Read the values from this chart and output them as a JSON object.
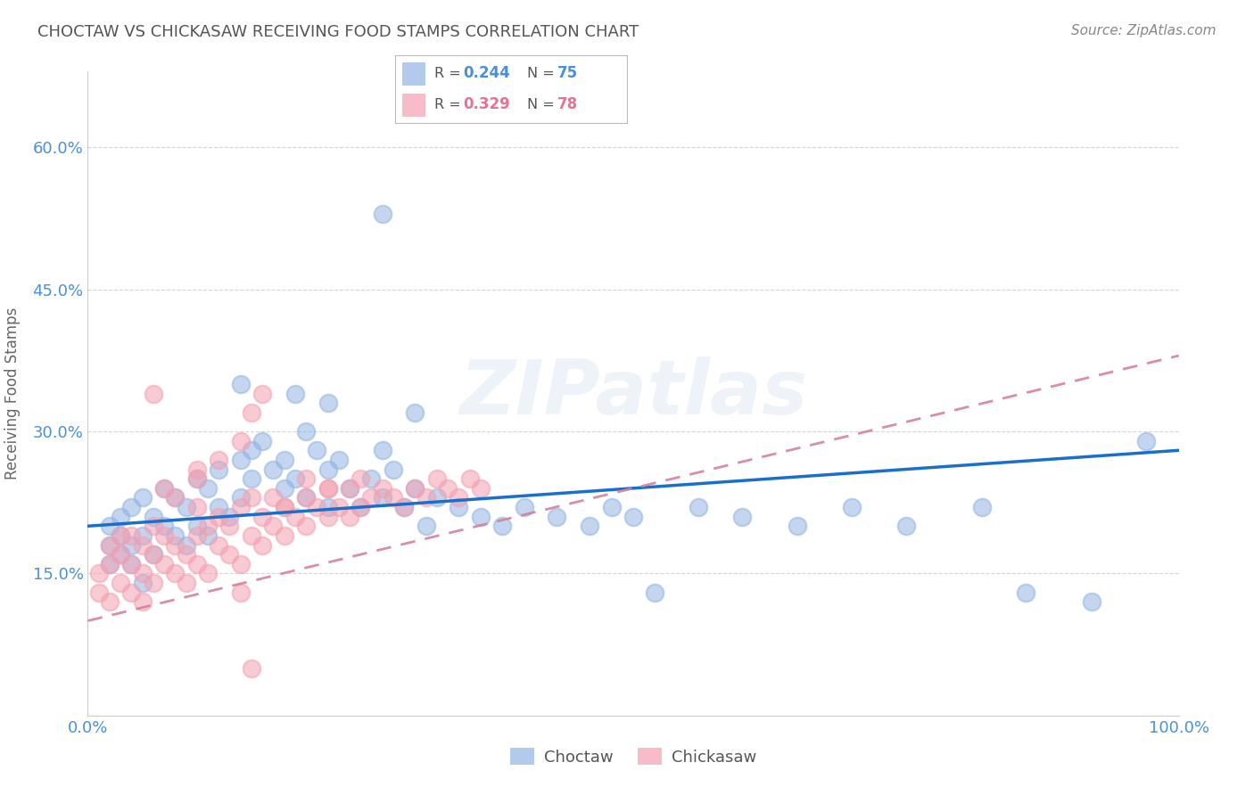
{
  "title": "CHOCTAW VS CHICKASAW RECEIVING FOOD STAMPS CORRELATION CHART",
  "source_text": "Source: ZipAtlas.com",
  "ylabel": "Receiving Food Stamps",
  "xlim": [
    0,
    1.0
  ],
  "ylim": [
    0,
    0.68
  ],
  "xticks": [
    0.0,
    0.2,
    0.4,
    0.6,
    0.8,
    1.0
  ],
  "xticklabels": [
    "0.0%",
    "",
    "",
    "",
    "",
    "100.0%"
  ],
  "yticks": [
    0.15,
    0.3,
    0.45,
    0.6
  ],
  "yticklabels": [
    "15.0%",
    "30.0%",
    "45.0%",
    "60.0%"
  ],
  "choctaw_color": "#92B4E3",
  "chickasaw_color": "#F4A0B0",
  "choctaw_line_color": "#1a6fcd",
  "chickasaw_line_color": "#d4829a",
  "watermark": "ZIPatlas",
  "background_color": "#ffffff",
  "grid_color": "#cccccc",
  "choctaw_x": [
    0.02,
    0.02,
    0.02,
    0.03,
    0.03,
    0.03,
    0.04,
    0.04,
    0.04,
    0.05,
    0.05,
    0.05,
    0.06,
    0.06,
    0.07,
    0.07,
    0.08,
    0.08,
    0.09,
    0.09,
    0.1,
    0.1,
    0.11,
    0.11,
    0.12,
    0.12,
    0.13,
    0.14,
    0.14,
    0.15,
    0.15,
    0.16,
    0.17,
    0.18,
    0.18,
    0.19,
    0.2,
    0.2,
    0.21,
    0.22,
    0.22,
    0.23,
    0.24,
    0.25,
    0.26,
    0.27,
    0.27,
    0.28,
    0.29,
    0.3,
    0.31,
    0.32,
    0.34,
    0.36,
    0.38,
    0.4,
    0.43,
    0.46,
    0.48,
    0.5,
    0.52,
    0.56,
    0.6,
    0.65,
    0.7,
    0.75,
    0.82,
    0.86,
    0.92,
    0.97,
    0.27,
    0.14,
    0.19,
    0.22,
    0.3
  ],
  "choctaw_y": [
    0.18,
    0.2,
    0.16,
    0.17,
    0.19,
    0.21,
    0.16,
    0.22,
    0.18,
    0.14,
    0.19,
    0.23,
    0.17,
    0.21,
    0.2,
    0.24,
    0.19,
    0.23,
    0.18,
    0.22,
    0.25,
    0.2,
    0.24,
    0.19,
    0.26,
    0.22,
    0.21,
    0.27,
    0.23,
    0.25,
    0.28,
    0.29,
    0.26,
    0.27,
    0.24,
    0.25,
    0.3,
    0.23,
    0.28,
    0.26,
    0.22,
    0.27,
    0.24,
    0.22,
    0.25,
    0.23,
    0.28,
    0.26,
    0.22,
    0.24,
    0.2,
    0.23,
    0.22,
    0.21,
    0.2,
    0.22,
    0.21,
    0.2,
    0.22,
    0.21,
    0.13,
    0.22,
    0.21,
    0.2,
    0.22,
    0.2,
    0.22,
    0.13,
    0.12,
    0.29,
    0.53,
    0.35,
    0.34,
    0.33,
    0.32
  ],
  "chickasaw_x": [
    0.01,
    0.01,
    0.02,
    0.02,
    0.02,
    0.03,
    0.03,
    0.03,
    0.04,
    0.04,
    0.04,
    0.05,
    0.05,
    0.05,
    0.06,
    0.06,
    0.06,
    0.07,
    0.07,
    0.08,
    0.08,
    0.09,
    0.09,
    0.1,
    0.1,
    0.1,
    0.11,
    0.11,
    0.12,
    0.12,
    0.13,
    0.13,
    0.14,
    0.14,
    0.15,
    0.15,
    0.16,
    0.16,
    0.17,
    0.17,
    0.18,
    0.18,
    0.19,
    0.2,
    0.2,
    0.21,
    0.22,
    0.22,
    0.23,
    0.24,
    0.24,
    0.25,
    0.25,
    0.26,
    0.27,
    0.28,
    0.29,
    0.3,
    0.31,
    0.32,
    0.33,
    0.34,
    0.35,
    0.36,
    0.07,
    0.1,
    0.12,
    0.14,
    0.15,
    0.16,
    0.18,
    0.2,
    0.22,
    0.14,
    0.1,
    0.08,
    0.06,
    0.15
  ],
  "chickasaw_y": [
    0.13,
    0.15,
    0.12,
    0.16,
    0.18,
    0.14,
    0.17,
    0.19,
    0.13,
    0.16,
    0.19,
    0.12,
    0.15,
    0.18,
    0.14,
    0.17,
    0.2,
    0.16,
    0.19,
    0.15,
    0.18,
    0.14,
    0.17,
    0.16,
    0.19,
    0.22,
    0.15,
    0.2,
    0.18,
    0.21,
    0.17,
    0.2,
    0.16,
    0.22,
    0.19,
    0.23,
    0.18,
    0.21,
    0.2,
    0.23,
    0.19,
    0.22,
    0.21,
    0.2,
    0.23,
    0.22,
    0.21,
    0.24,
    0.22,
    0.21,
    0.24,
    0.22,
    0.25,
    0.23,
    0.24,
    0.23,
    0.22,
    0.24,
    0.23,
    0.25,
    0.24,
    0.23,
    0.25,
    0.24,
    0.24,
    0.26,
    0.27,
    0.29,
    0.32,
    0.34,
    0.22,
    0.25,
    0.24,
    0.13,
    0.25,
    0.23,
    0.34,
    0.05
  ]
}
